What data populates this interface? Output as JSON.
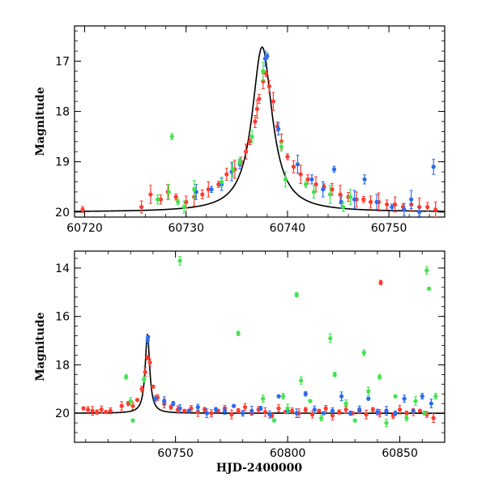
{
  "chart_data": [
    {
      "type": "scatter",
      "panel": "top",
      "xlabel": "",
      "ylabel": "Magnitude",
      "xlim": [
        60719,
        60755.5
      ],
      "ylim": [
        20.1,
        16.3
      ],
      "y_inverted": true,
      "xticks": [
        60720,
        60730,
        60740,
        60750
      ],
      "yticks": [
        17,
        18,
        19,
        20
      ],
      "model_curve": {
        "peak_x": 60737.5,
        "peak_mag": 16.72,
        "baseline_mag": 20.0,
        "color": "#000000"
      },
      "series": [
        {
          "color": "#ff3b2f",
          "points": [
            [
              60719.8,
              19.95
            ],
            [
              60725.6,
              19.9
            ],
            [
              60726.5,
              19.65
            ],
            [
              60727.5,
              19.75
            ],
            [
              60728.2,
              19.6
            ],
            [
              60729.0,
              19.7
            ],
            [
              60730.0,
              19.8
            ],
            [
              60730.8,
              19.7
            ],
            [
              60731.6,
              19.65
            ],
            [
              60732.2,
              19.55
            ],
            [
              60733.2,
              19.45
            ],
            [
              60734.0,
              19.25
            ],
            [
              60734.8,
              19.15
            ],
            [
              60735.4,
              19.0
            ],
            [
              60735.9,
              18.8
            ],
            [
              60736.3,
              18.6
            ],
            [
              60736.8,
              18.2
            ],
            [
              60737.0,
              17.95
            ],
            [
              60737.2,
              17.75
            ],
            [
              60737.6,
              17.4
            ],
            [
              60737.9,
              17.25
            ],
            [
              60738.2,
              17.5
            ],
            [
              60738.6,
              17.8
            ],
            [
              60739.0,
              18.3
            ],
            [
              60739.4,
              18.6
            ],
            [
              60740.0,
              18.9
            ],
            [
              60740.6,
              19.1
            ],
            [
              60741.3,
              19.25
            ],
            [
              60742.0,
              19.35
            ],
            [
              60742.8,
              19.45
            ],
            [
              60743.6,
              19.5
            ],
            [
              60744.4,
              19.55
            ],
            [
              60745.2,
              19.65
            ],
            [
              60746.0,
              19.7
            ],
            [
              60746.8,
              19.75
            ],
            [
              60747.5,
              19.75
            ],
            [
              60748.2,
              19.8
            ],
            [
              60749.0,
              19.8
            ],
            [
              60749.8,
              19.85
            ],
            [
              60750.6,
              19.85
            ],
            [
              60751.4,
              19.9
            ],
            [
              60752.2,
              19.85
            ],
            [
              60753.0,
              19.9
            ],
            [
              60753.8,
              19.9
            ],
            [
              60754.6,
              19.95
            ]
          ]
        },
        {
          "color": "#2b6cf0",
          "points": [
            [
              60731.0,
              19.6
            ],
            [
              60732.5,
              19.55
            ],
            [
              60733.5,
              19.45
            ],
            [
              60734.5,
              19.2
            ],
            [
              60735.3,
              19.05
            ],
            [
              60737.8,
              16.95
            ],
            [
              60738.0,
              16.9
            ],
            [
              60739.1,
              18.35
            ],
            [
              60741.0,
              19.05
            ],
            [
              60742.4,
              19.35
            ],
            [
              60743.5,
              19.55
            ],
            [
              60744.6,
              19.15
            ],
            [
              60745.3,
              19.8
            ],
            [
              60746.6,
              19.75
            ],
            [
              60747.6,
              19.35
            ],
            [
              60748.8,
              19.8
            ],
            [
              60750.3,
              19.9
            ],
            [
              60751.5,
              19.95
            ],
            [
              60752.2,
              19.75
            ],
            [
              60753.0,
              20.0
            ],
            [
              60754.4,
              19.1
            ]
          ]
        },
        {
          "color": "#3ee64a",
          "points": [
            [
              60727.2,
              19.75
            ],
            [
              60728.3,
              19.6
            ],
            [
              60729.2,
              19.8
            ],
            [
              60729.8,
              19.9
            ],
            [
              60730.8,
              19.55
            ],
            [
              60733.5,
              19.4
            ],
            [
              60734.6,
              19.15
            ],
            [
              60735.3,
              19.0
            ],
            [
              60736.5,
              18.5
            ],
            [
              60737.6,
              17.2
            ],
            [
              60739.4,
              18.7
            ],
            [
              60739.8,
              19.35
            ],
            [
              60741.8,
              19.45
            ],
            [
              60742.6,
              19.6
            ],
            [
              60744.2,
              19.65
            ],
            [
              60745.5,
              19.9
            ],
            [
              60746.2,
              19.7
            ],
            [
              60728.6,
              18.5
            ]
          ]
        }
      ]
    },
    {
      "type": "scatter",
      "panel": "bottom",
      "xlabel": "HJD-2400000",
      "ylabel": "Magnitude",
      "xlim": [
        60705,
        60870
      ],
      "ylim": [
        21.2,
        13.3
      ],
      "y_inverted": true,
      "xticks": [
        60750,
        60800,
        60850
      ],
      "yticks": [
        14,
        16,
        18,
        20
      ],
      "model_curve": {
        "peak_x": 60737.5,
        "peak_mag": 16.72,
        "baseline_mag": 20.0,
        "color": "#000000"
      },
      "series": [
        {
          "color": "#ff3b2f",
          "points": [
            [
              60709,
              19.8
            ],
            [
              60711,
              19.85
            ],
            [
              60713,
              19.9
            ],
            [
              60715,
              19.95
            ],
            [
              60717,
              19.85
            ],
            [
              60719,
              19.95
            ],
            [
              60721,
              19.9
            ],
            [
              60726,
              19.7
            ],
            [
              60729,
              19.6
            ],
            [
              60731,
              19.7
            ],
            [
              60733,
              19.45
            ],
            [
              60735,
              19.0
            ],
            [
              60736.5,
              18.3
            ],
            [
              60737.5,
              17.7
            ],
            [
              60738.6,
              17.9
            ],
            [
              60740,
              18.9
            ],
            [
              60742,
              19.35
            ],
            [
              60745,
              19.6
            ],
            [
              60748,
              19.75
            ],
            [
              60751,
              19.85
            ],
            [
              60754,
              19.9
            ],
            [
              60757,
              19.8
            ],
            [
              60760,
              19.95
            ],
            [
              60763,
              19.85
            ],
            [
              60766,
              20.0
            ],
            [
              60769,
              19.9
            ],
            [
              60772,
              19.8
            ],
            [
              60775,
              20.05
            ],
            [
              60778,
              19.9
            ],
            [
              60781,
              19.75
            ],
            [
              60784,
              20.0
            ],
            [
              60787,
              19.85
            ],
            [
              60790,
              19.95
            ],
            [
              60793,
              20.1
            ],
            [
              60796,
              19.8
            ],
            [
              60799,
              19.95
            ],
            [
              60802,
              19.9
            ],
            [
              60805,
              20.0
            ],
            [
              60808,
              19.85
            ],
            [
              60811,
              20.05
            ],
            [
              60814,
              19.9
            ],
            [
              60817,
              19.8
            ],
            [
              60820,
              20.1
            ],
            [
              60823,
              19.95
            ],
            [
              60826,
              19.85
            ],
            [
              60829,
              20.0
            ],
            [
              60832,
              19.9
            ],
            [
              60835,
              20.05
            ],
            [
              60838,
              19.85
            ],
            [
              60841,
              20.0
            ],
            [
              60844,
              19.9
            ],
            [
              60847,
              20.1
            ],
            [
              60850,
              19.85
            ],
            [
              60853,
              20.0
            ],
            [
              60856,
              19.95
            ],
            [
              60859,
              19.9
            ],
            [
              60862,
              20.05
            ],
            [
              60865,
              20.2
            ],
            [
              60841.5,
              14.6
            ]
          ]
        },
        {
          "color": "#2b6cf0",
          "points": [
            [
              60737.6,
              17.0
            ],
            [
              60737.8,
              16.85
            ],
            [
              60741,
              19.4
            ],
            [
              60745,
              19.5
            ],
            [
              60749,
              19.6
            ],
            [
              60752,
              19.8
            ],
            [
              60756,
              19.9
            ],
            [
              60760,
              19.75
            ],
            [
              60764,
              20.0
            ],
            [
              60768,
              19.85
            ],
            [
              60772,
              19.9
            ],
            [
              60776,
              19.7
            ],
            [
              60780,
              20.0
            ],
            [
              60784,
              19.9
            ],
            [
              60788,
              19.8
            ],
            [
              60792,
              20.05
            ],
            [
              60796,
              19.3
            ],
            [
              60800,
              19.9
            ],
            [
              60804,
              20.0
            ],
            [
              60808,
              19.2
            ],
            [
              60812,
              19.85
            ],
            [
              60816,
              20.0
            ],
            [
              60820,
              19.9
            ],
            [
              60824,
              19.3
            ],
            [
              60828,
              20.0
            ],
            [
              60832,
              19.85
            ],
            [
              60836,
              19.4
            ],
            [
              60840,
              19.95
            ],
            [
              60844,
              19.9
            ],
            [
              60848,
              20.0
            ],
            [
              60852,
              19.4
            ],
            [
              60856,
              19.9
            ],
            [
              60860,
              19.3
            ],
            [
              60864,
              19.6
            ]
          ]
        },
        {
          "color": "#3ee64a",
          "points": [
            [
              60728,
              18.5
            ],
            [
              60730,
              19.5
            ],
            [
              60731,
              20.3
            ],
            [
              60736,
              18.6
            ],
            [
              60752,
              13.7
            ],
            [
              60778,
              16.7
            ],
            [
              60789,
              19.4
            ],
            [
              60794,
              20.3
            ],
            [
              60798,
              19.3
            ],
            [
              60800,
              19.8
            ],
            [
              60804,
              15.1
            ],
            [
              60806,
              18.65
            ],
            [
              60810,
              19.5
            ],
            [
              60815,
              20.2
            ],
            [
              60819,
              16.9
            ],
            [
              60821,
              18.4
            ],
            [
              60826,
              19.6
            ],
            [
              60830,
              20.3
            ],
            [
              60834,
              17.5
            ],
            [
              60836,
              19.1
            ],
            [
              60841,
              18.5
            ],
            [
              60844,
              20.4
            ],
            [
              60848,
              19.3
            ],
            [
              60853,
              20.2
            ],
            [
              60857,
              19.5
            ],
            [
              60861,
              20.0
            ],
            [
              60862,
              14.1
            ],
            [
              60863,
              14.85
            ],
            [
              60866,
              19.3
            ]
          ]
        }
      ]
    }
  ]
}
